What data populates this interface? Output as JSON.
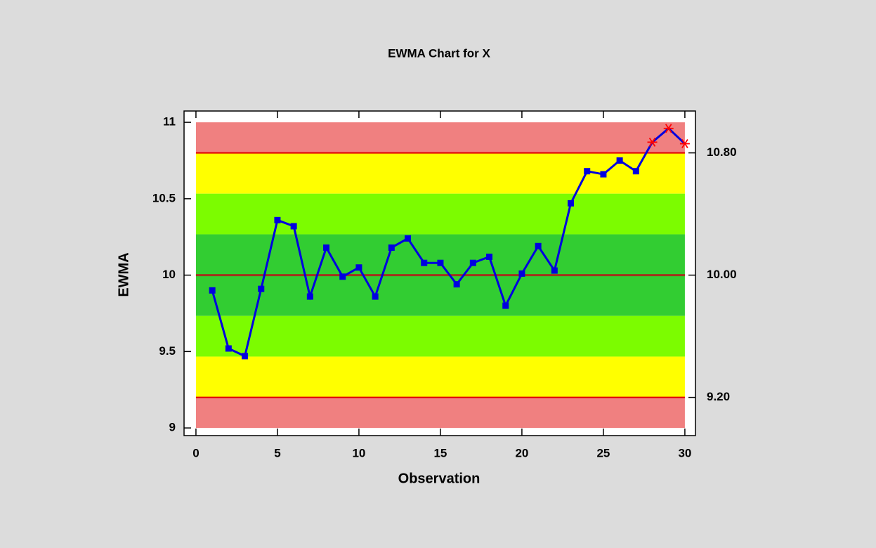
{
  "chart_data": {
    "type": "line",
    "title": "EWMA Chart for X",
    "xlabel": "Observation",
    "ylabel": "EWMA",
    "x": [
      1,
      2,
      3,
      4,
      5,
      6,
      7,
      8,
      9,
      10,
      11,
      12,
      13,
      14,
      15,
      16,
      17,
      18,
      19,
      20,
      21,
      22,
      23,
      24,
      25,
      26,
      27,
      28,
      29,
      30
    ],
    "series": [
      {
        "name": "EWMA",
        "color": "#0000e0",
        "out_color": "#ff0000",
        "values": [
          9.9,
          9.52,
          9.47,
          9.91,
          10.36,
          10.32,
          9.86,
          10.18,
          9.99,
          10.05,
          9.86,
          10.18,
          10.24,
          10.08,
          10.08,
          9.94,
          10.08,
          10.12,
          9.8,
          10.01,
          10.19,
          10.03,
          10.47,
          10.68,
          10.66,
          10.75,
          10.68,
          10.87,
          10.96,
          10.86
        ]
      }
    ],
    "xlim": [
      -0.73,
      30.65
    ],
    "xticks": [
      0,
      5,
      10,
      15,
      20,
      25,
      30
    ],
    "ylim": [
      8.95,
      11.074
    ],
    "yticks": [
      9,
      9.5,
      10,
      10.5,
      11
    ],
    "y2lim": [
      8.95,
      11.074
    ],
    "y2ticks": [
      {
        "value": 9.2,
        "label": "9.20"
      },
      {
        "value": 10,
        "label": "10.00"
      },
      {
        "value": 10.8,
        "label": "10.80"
      }
    ],
    "limit_color": "#e00000",
    "center_color": "#a0341c",
    "zones": [
      {
        "from": 10.8,
        "to": 11,
        "color": "#f08080"
      },
      {
        "from": 10.533,
        "to": 10.8,
        "color": "#ffff00"
      },
      {
        "from": 10.267,
        "to": 10.533,
        "color": "#7cfc00"
      },
      {
        "from": 9.733,
        "to": 10.267,
        "color": "#32cd32"
      },
      {
        "from": 9.467,
        "to": 9.733,
        "color": "#7cfc00"
      },
      {
        "from": 9.2,
        "to": 9.467,
        "color": "#ffff00"
      },
      {
        "from": 9,
        "to": 9.2,
        "color": "#f08080"
      }
    ],
    "zone_xlim": [
      0,
      30
    ]
  }
}
